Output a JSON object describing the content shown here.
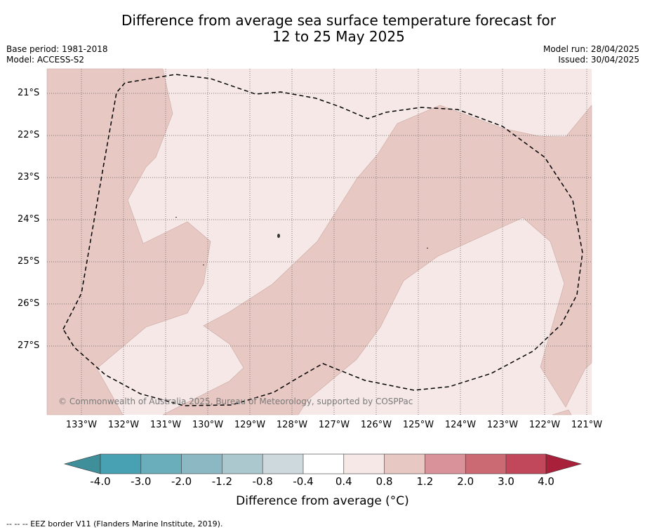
{
  "title_line1": "Difference from average sea surface temperature forecast for",
  "title_line2": "12 to 25 May 2025",
  "base_period": "Base period: 1981-2018",
  "model": "Model: ACCESS-S2",
  "model_run": "Model run: 28/04/2025",
  "issued": "Issued: 30/04/2025",
  "latitudes": [
    "21°S",
    "22°S",
    "23°S",
    "24°S",
    "25°S",
    "26°S",
    "27°S"
  ],
  "longitudes": [
    "133°W",
    "132°W",
    "131°W",
    "130°W",
    "129°W",
    "128°W",
    "127°W",
    "126°W",
    "125°W",
    "124°W",
    "123°W",
    "122°W",
    "121°W"
  ],
  "copyright": "© Commonwealth of Australia 2025, Bureau of Meteorology, supported by COSPPac",
  "colorbar": {
    "labels": [
      "-4.0",
      "-3.0",
      "-2.0",
      "-1.2",
      "-0.8",
      "-0.4",
      "0.4",
      "0.8",
      "1.2",
      "2.0",
      "3.0",
      "4.0"
    ],
    "colors": [
      "#3f8f9b",
      "#48a1b2",
      "#6aaebb",
      "#8bb8c3",
      "#aac8cd",
      "#cdd9dc",
      "#ffffff",
      "#f5e8e6",
      "#e8c8c3",
      "#d9929a",
      "#cc6a74",
      "#c0485a",
      "#a8203a"
    ],
    "title": "Difference from average (°C)"
  },
  "footnote": "--  --  -- EEZ border V11 (Flanders Marine Institute, 2019).",
  "map_colors": {
    "anomaly_04_08": "#f5e8e6",
    "anomaly_08_12": "#e8c8c3",
    "grid": "#555555",
    "eez_border": "#000000"
  }
}
